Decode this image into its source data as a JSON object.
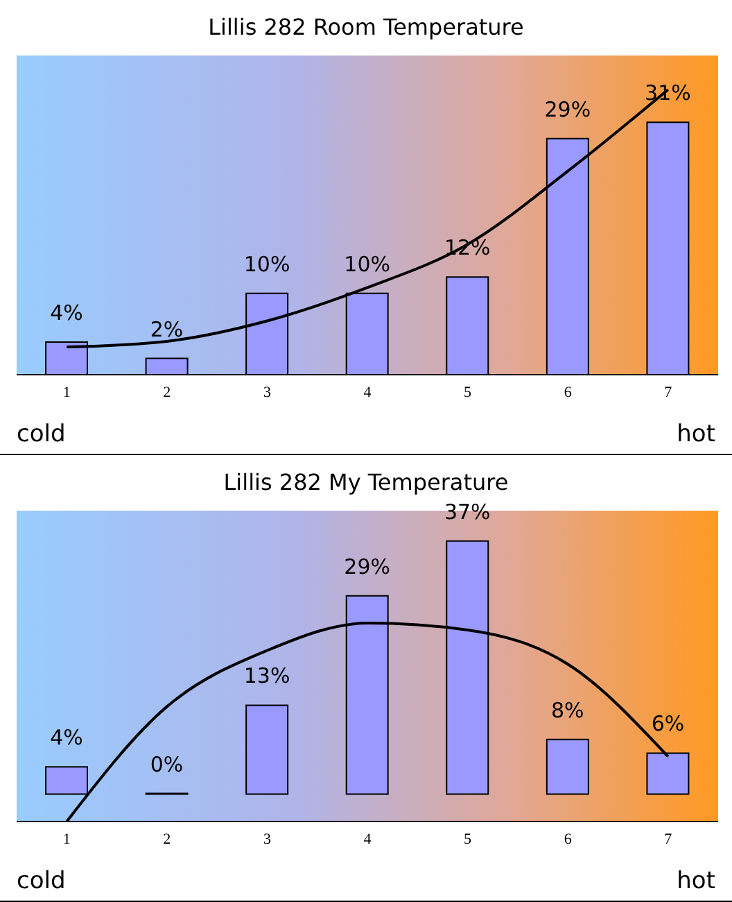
{
  "chart_data": [
    {
      "type": "bar",
      "title": "Lillis 282 Room Temperature",
      "categories": [
        "1",
        "2",
        "3",
        "4",
        "5",
        "6",
        "7"
      ],
      "series": [
        {
          "color": "#9999ff",
          "values": [
            4,
            2,
            10,
            10,
            12,
            29,
            31
          ],
          "value_labels": [
            "4%",
            "2%",
            "10%",
            "10%",
            "12%",
            "29%",
            "31%"
          ]
        },
        {
          "type": "line",
          "color": "#000000",
          "values": [
            3.4,
            4.1,
            6.6,
            10.7,
            16,
            25,
            35
          ]
        }
      ],
      "legend": false,
      "marker": "none",
      "tick_labels": "x",
      "annotations": [
        "cold",
        "hot"
      ]
    },
    {
      "type": "bar",
      "title": "Lillis 282 My Temperature",
      "categories": [
        "1",
        "2",
        "3",
        "4",
        "5",
        "6",
        "7"
      ],
      "series": [
        {
          "color": "#9999ff",
          "values": [
            4,
            0,
            13,
            29,
            37,
            8,
            6
          ],
          "value_labels": [
            "4%",
            "0%",
            "13%",
            "29%",
            "37%",
            "8%",
            "6%"
          ]
        },
        {
          "type": "line",
          "color": "#000000",
          "values": [
            -4,
            12.8,
            21,
            25,
            24,
            19,
            5.5
          ]
        }
      ],
      "legend": false,
      "marker": "none",
      "tick_labels": "x",
      "annotations": [
        "cold",
        "hot"
      ]
    }
  ]
}
